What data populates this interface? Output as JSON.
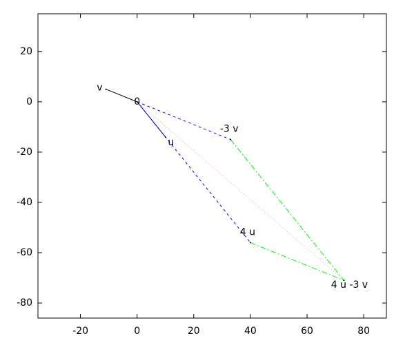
{
  "chart_data": {
    "type": "line",
    "xlim": [
      -35,
      88
    ],
    "ylim": [
      -86,
      35
    ],
    "xticks": [
      -20,
      0,
      20,
      40,
      60,
      80
    ],
    "yticks": [
      -80,
      -60,
      -40,
      -20,
      0,
      20
    ],
    "series": [
      {
        "color": "#000000",
        "dash": "solid",
        "x": [
          0,
          -11
        ],
        "y": [
          0,
          5
        ]
      },
      {
        "color": "#000080",
        "dash": "solid",
        "x": [
          0,
          10
        ],
        "y": [
          0,
          -14
        ]
      },
      {
        "color": "#0000ff",
        "dash": "dashed",
        "x": [
          0,
          33
        ],
        "y": [
          0,
          -15
        ]
      },
      {
        "color": "#0000ff",
        "dash": "dashed",
        "x": [
          0,
          40
        ],
        "y": [
          0,
          -56
        ]
      },
      {
        "color": "#00ee00",
        "dash": "dashdot",
        "x": [
          33,
          73
        ],
        "y": [
          -15,
          -71
        ]
      },
      {
        "color": "#00ee00",
        "dash": "dashdot",
        "x": [
          40,
          73
        ],
        "y": [
          -56,
          -71
        ]
      },
      {
        "color": "#ff9999",
        "dash": "dotted",
        "x": [
          0,
          73
        ],
        "y": [
          0,
          -71
        ]
      }
    ],
    "annotations": [
      {
        "text": "v",
        "x": -11,
        "y": 5
      },
      {
        "text": "0",
        "x": 0,
        "y": 0
      },
      {
        "text": "-3 v",
        "x": 33,
        "y": -15
      },
      {
        "text": "u",
        "x": 10,
        "y": -14
      },
      {
        "text": "4 u",
        "x": 40,
        "y": -56
      },
      {
        "text": "4 u -3 v",
        "x": 73,
        "y": -71
      }
    ]
  }
}
